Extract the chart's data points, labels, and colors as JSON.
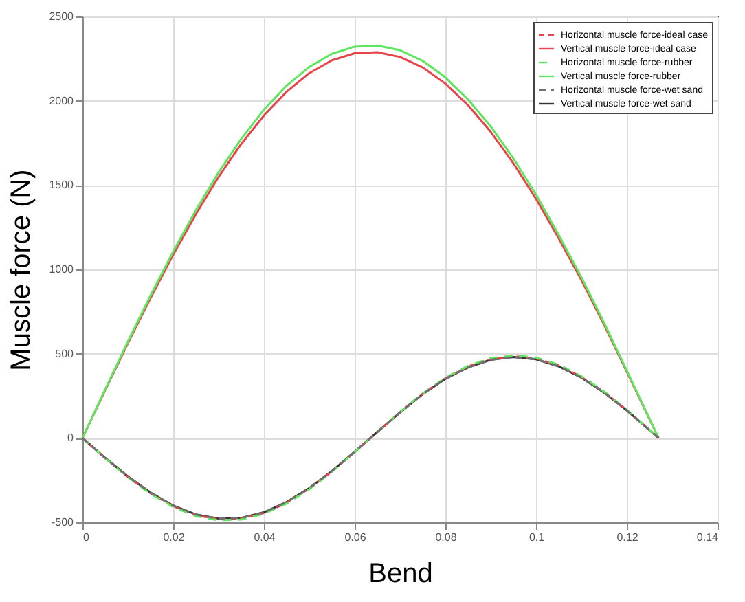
{
  "chart_data": {
    "type": "line",
    "xlabel": "Bend",
    "ylabel": "Muscle force (N)",
    "x": [
      0,
      0.005,
      0.01,
      0.015,
      0.02,
      0.025,
      0.03,
      0.035,
      0.04,
      0.045,
      0.05,
      0.055,
      0.06,
      0.065,
      0.07,
      0.075,
      0.08,
      0.085,
      0.09,
      0.095,
      0.1,
      0.105,
      0.11,
      0.115,
      0.12,
      0.125,
      0.127
    ],
    "xlim": [
      0,
      0.14
    ],
    "xticks": [
      0,
      0.02,
      0.04,
      0.06,
      0.08,
      0.1,
      0.12,
      0.14
    ],
    "ylim": [
      -500,
      2500
    ],
    "yticks": [
      -500,
      0,
      500,
      1000,
      1500,
      2000,
      2500
    ],
    "grid": true,
    "legend": "top right",
    "marker": "none",
    "series": [
      {
        "name": "Horizontal muscle force-ideal case",
        "color": "#e8434a",
        "line_style": "dashed",
        "values": [
          0,
          -119,
          -230,
          -328,
          -405,
          -458,
          -483,
          -479,
          -445,
          -385,
          -300,
          -198,
          -83,
          36,
          153,
          262,
          354,
          424,
          469,
          485,
          472,
          430,
          362,
          272,
          166,
          48,
          0
        ]
      },
      {
        "name": "Vertical muscle force-ideal case",
        "color": "#e8434a",
        "line_style": "solid",
        "values": [
          0,
          283,
          561,
          830,
          1087,
          1327,
          1548,
          1744,
          1913,
          2054,
          2164,
          2240,
          2282,
          2288,
          2260,
          2198,
          2102,
          1974,
          1816,
          1629,
          1418,
          1183,
          937,
          672,
          393,
          113,
          0
        ]
      },
      {
        "name": "Horizontal muscle force-rubber",
        "color": "#5ee65e",
        "line_style": "dashed",
        "values": [
          0,
          -120,
          -233,
          -331,
          -409,
          -463,
          -488,
          -484,
          -450,
          -389,
          -304,
          -200,
          -84,
          36,
          154,
          264,
          357,
          428,
          474,
          490,
          477,
          434,
          366,
          275,
          168,
          48,
          0
        ]
      },
      {
        "name": "Vertical muscle force-rubber",
        "color": "#5ee65e",
        "line_style": "solid",
        "values": [
          0,
          288,
          571,
          845,
          1106,
          1351,
          1575,
          1774,
          1947,
          2090,
          2201,
          2279,
          2321,
          2328,
          2300,
          2237,
          2139,
          2008,
          1848,
          1658,
          1443,
          1204,
          953,
          683,
          400,
          115,
          0
        ]
      },
      {
        "name": "Horizontal muscle force-wet sand",
        "color": "#707070",
        "line_style": "dashed",
        "values": [
          0,
          -118,
          -228,
          -324,
          -401,
          -454,
          -478,
          -474,
          -441,
          -380,
          -297,
          -196,
          -82,
          36,
          151,
          260,
          351,
          419,
          464,
          480,
          467,
          425,
          358,
          269,
          164,
          47,
          0
        ]
      },
      {
        "name": "Vertical muscle force-wet sand",
        "color": "#333333",
        "line_style": "solid",
        "values": [
          0,
          -118,
          -228,
          -324,
          -401,
          -454,
          -478,
          -474,
          -441,
          -380,
          -297,
          -196,
          -82,
          36,
          151,
          260,
          351,
          419,
          464,
          480,
          467,
          425,
          358,
          269,
          164,
          47,
          0
        ]
      }
    ]
  }
}
